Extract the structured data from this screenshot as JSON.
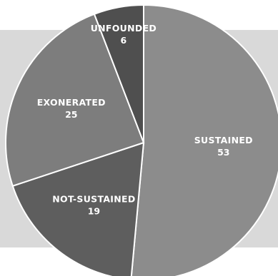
{
  "colors": {
    "background_band": "#d9d9d9",
    "slice_stroke": "#ffffff",
    "sustained": "#8c8c8c",
    "not_sustained": "#5e5e5e",
    "exonerated": "#7d7d7d",
    "unfounded": "#4f4f4f"
  },
  "chart_data": {
    "type": "pie",
    "title": "",
    "start_angle_deg": 0,
    "direction": "clockwise",
    "slices": [
      {
        "label": "SUSTAINED",
        "value": 53,
        "color": "#8c8c8c"
      },
      {
        "label": "NOT-SUSTAINED",
        "value": 19,
        "color": "#5e5e5e"
      },
      {
        "label": "EXONERATED",
        "value": 25,
        "color": "#7d7d7d"
      },
      {
        "label": "UNFOUNDED",
        "value": 6,
        "color": "#4f4f4f"
      }
    ]
  }
}
